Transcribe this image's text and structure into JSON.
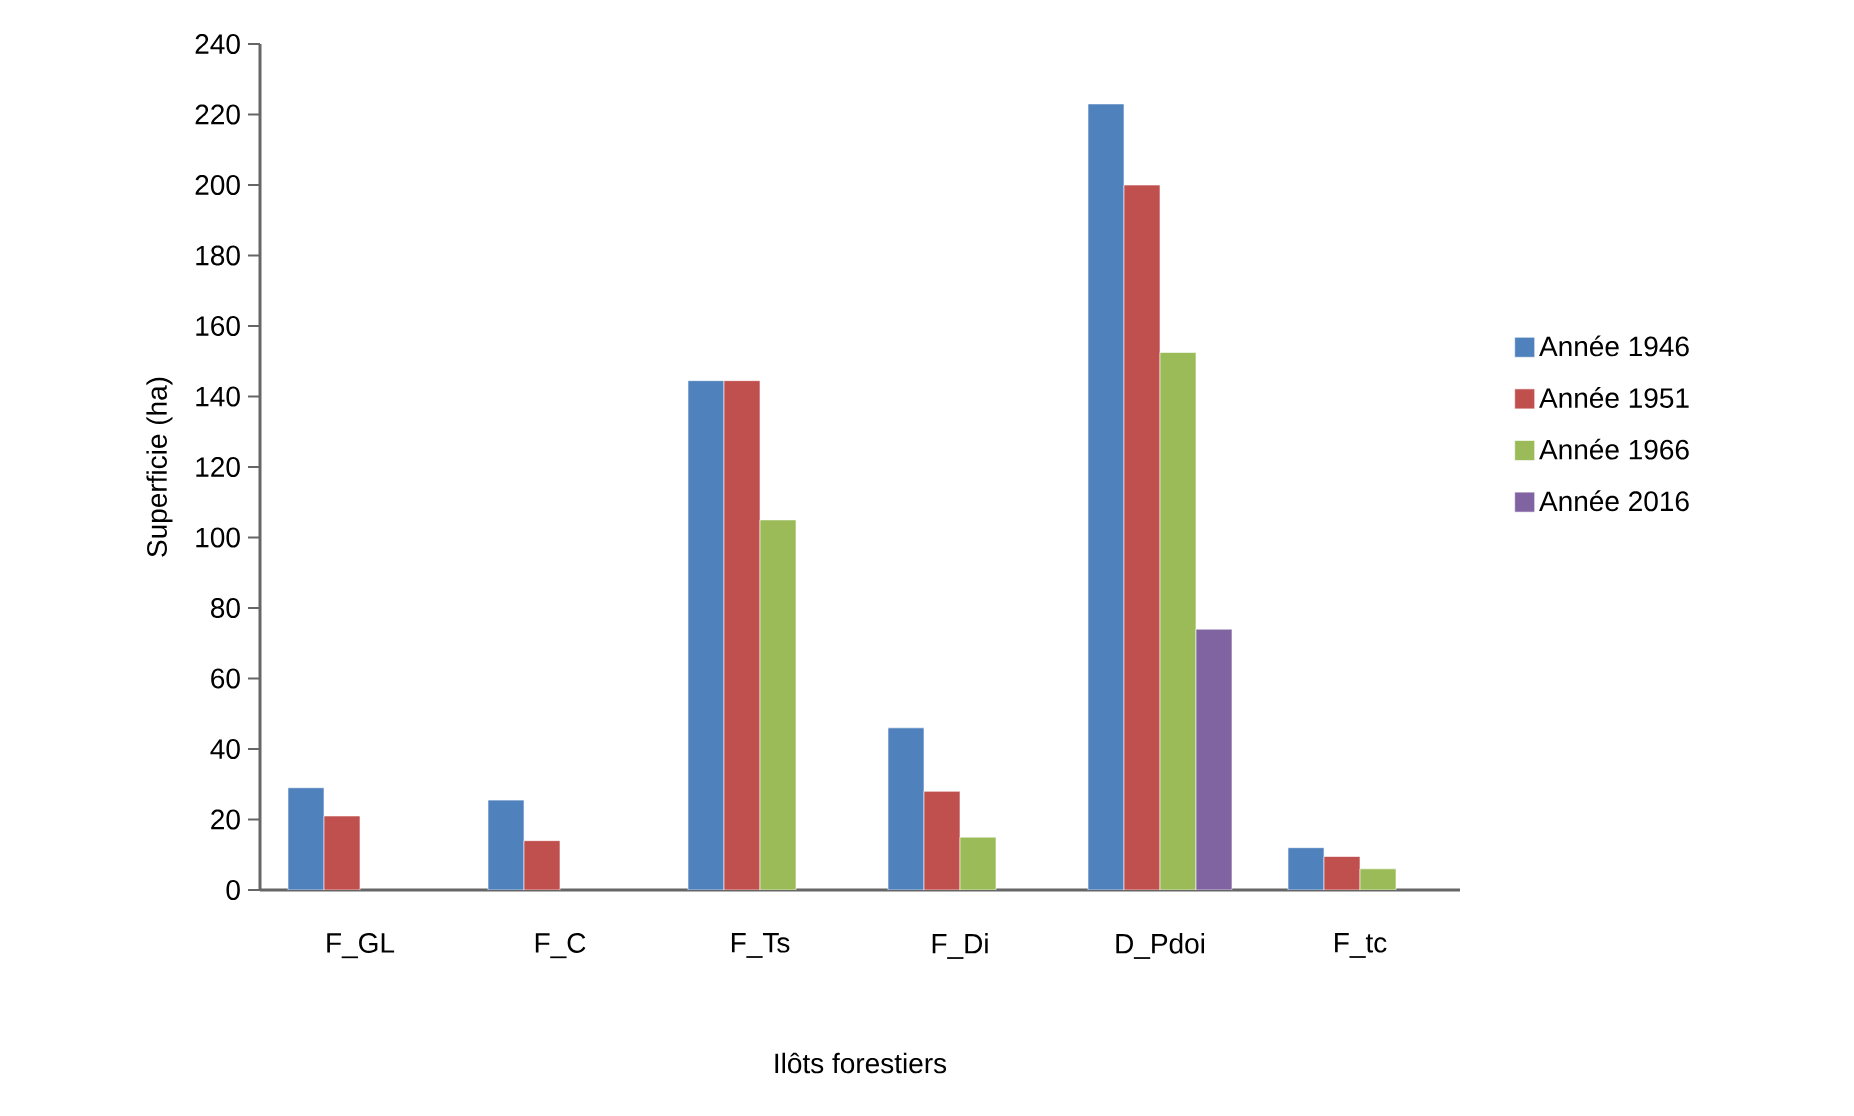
{
  "chart_data": {
    "type": "bar",
    "xlabel": "Ilôts forestiers",
    "ylabel": "Superficie (ha)",
    "categories": [
      "F_GL",
      "F_C",
      "F_Ts",
      "F_Di",
      "D_Pdoi",
      "F_tc"
    ],
    "series": [
      {
        "name": "Année 1946",
        "color": "#4f81bd",
        "values": [
          29,
          25.5,
          144.5,
          46,
          223,
          12
        ]
      },
      {
        "name": "Année 1951",
        "color": "#c0504d",
        "values": [
          21,
          14,
          144.5,
          28,
          200,
          9.5
        ]
      },
      {
        "name": "Année 1966",
        "color": "#9bbb59",
        "values": [
          null,
          null,
          105,
          15,
          152.5,
          6
        ]
      },
      {
        "name": "Année 2016",
        "color": "#8064a2",
        "values": [
          null,
          null,
          null,
          null,
          74,
          null
        ]
      }
    ],
    "ylim": [
      0,
      240
    ],
    "yticks": [
      0,
      20,
      40,
      60,
      80,
      100,
      120,
      140,
      160,
      180,
      200,
      220,
      240
    ],
    "grid": false,
    "legend": "right"
  }
}
